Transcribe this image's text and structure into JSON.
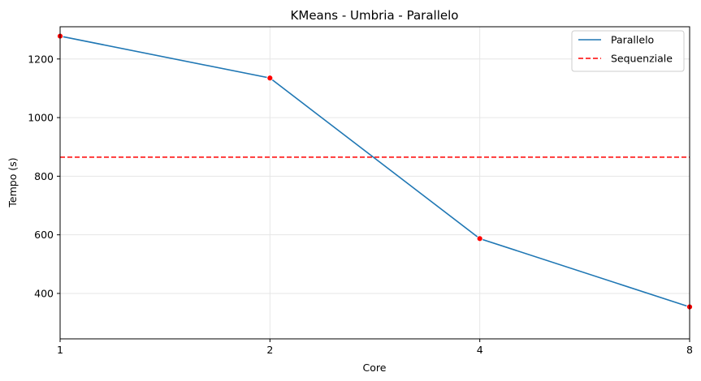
{
  "chart_data": {
    "type": "line",
    "title": "KMeans - Umbria - Parallelo",
    "xlabel": "Core",
    "ylabel": "Tempo (s)",
    "x": [
      1,
      2,
      4,
      8
    ],
    "x_ticks": [
      "1",
      "2",
      "4",
      "8"
    ],
    "y_ticks": [
      400,
      600,
      800,
      1000,
      1200
    ],
    "ylim": [
      245,
      1310
    ],
    "grid": true,
    "legend_position": "top-right",
    "series": [
      {
        "name": "Parallelo",
        "values": [
          1278,
          1135,
          587,
          354
        ],
        "color": "#1f77b4",
        "marker_color": "#ff0000",
        "style": "solid"
      }
    ],
    "reference_lines": [
      {
        "name": "Sequenziale",
        "value": 865,
        "color": "#ff0000",
        "style": "dashed"
      }
    ]
  }
}
